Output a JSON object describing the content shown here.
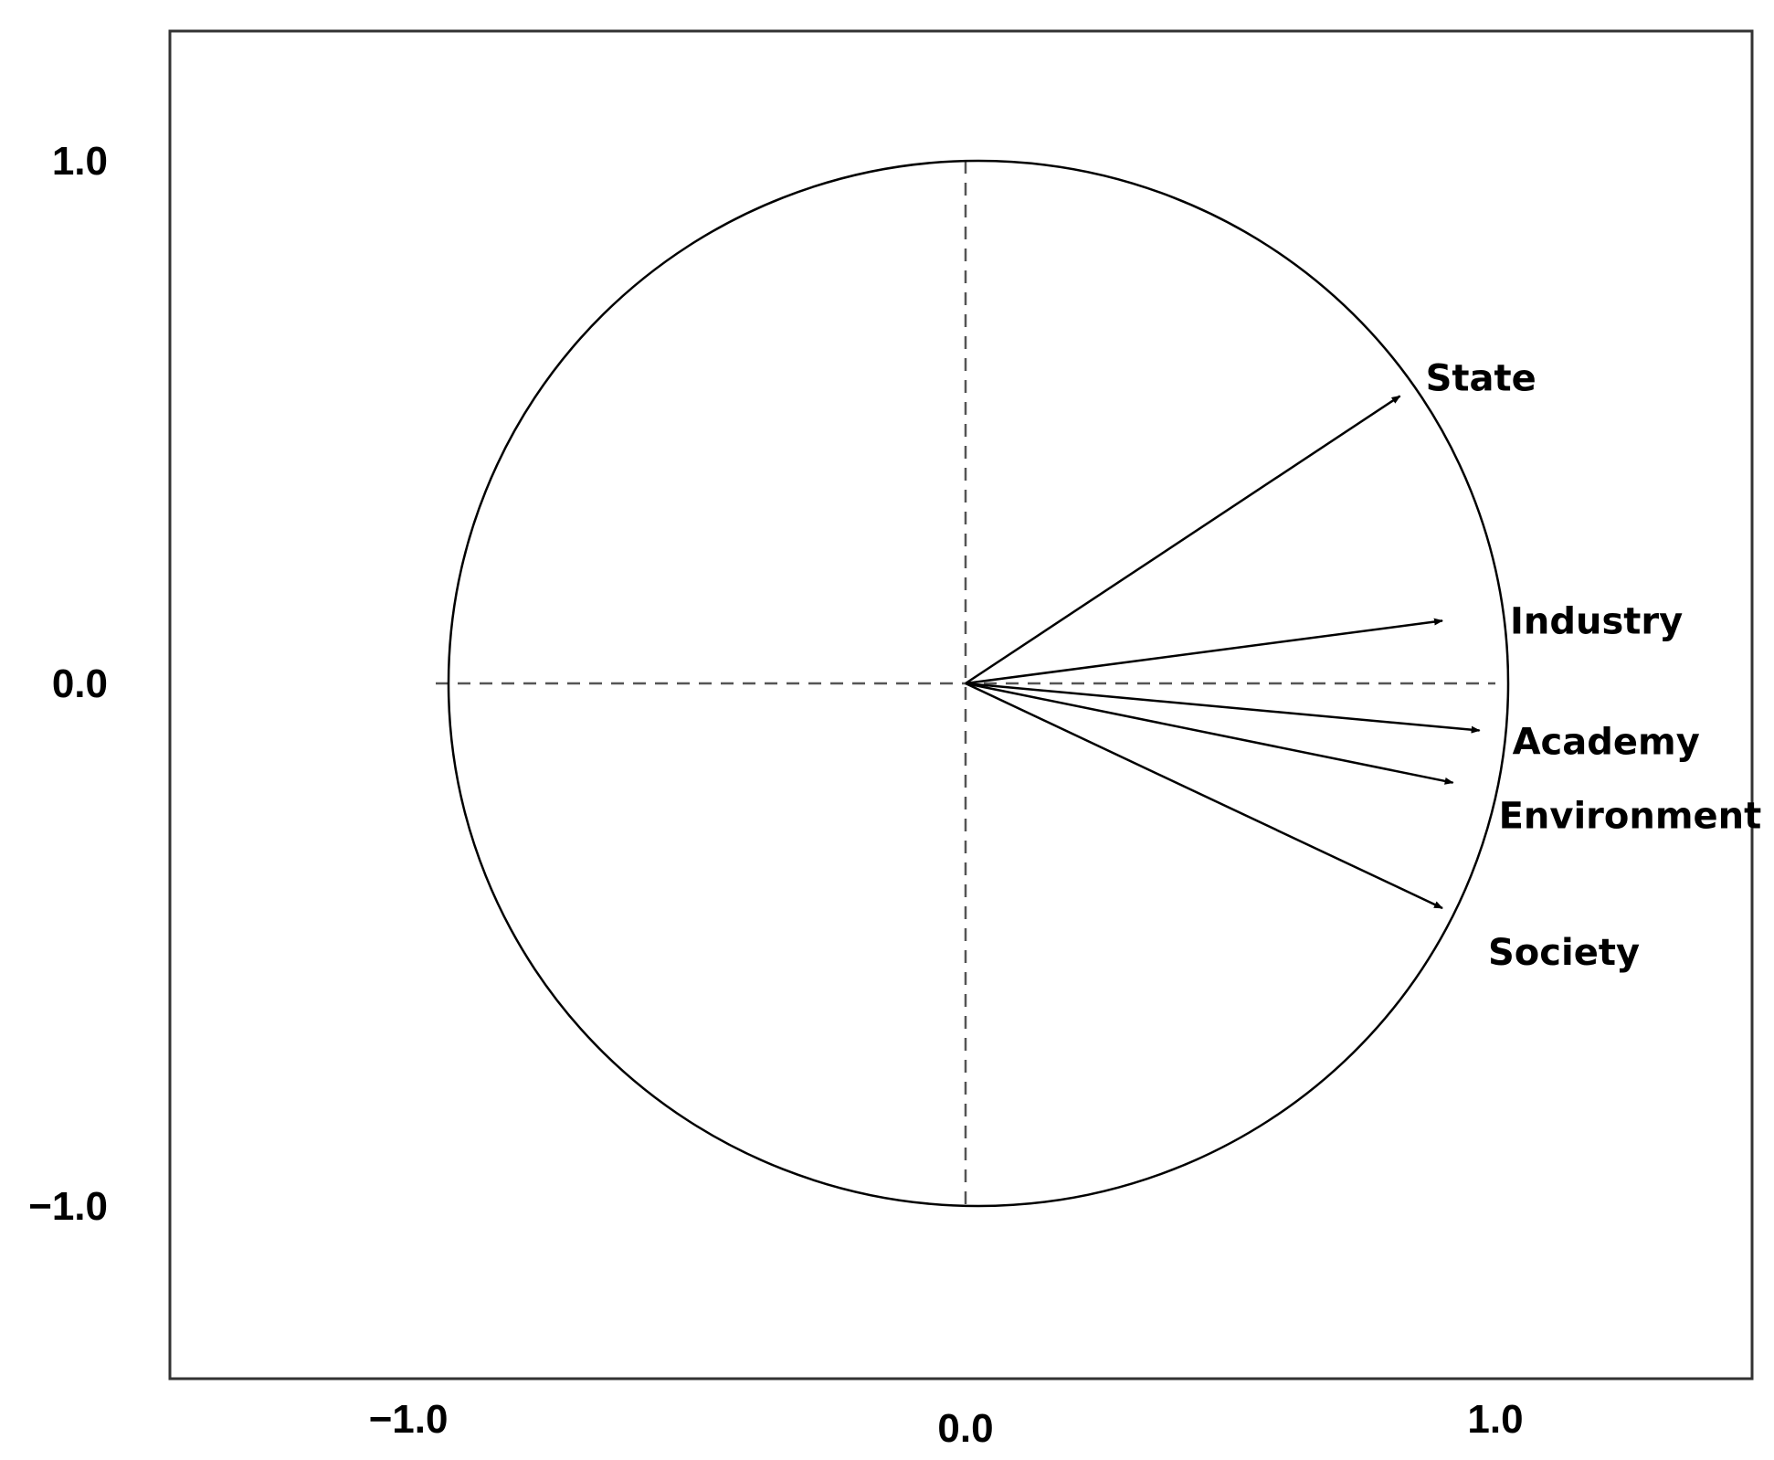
{
  "chart_data": {
    "type": "biplot-correlation-circle",
    "title": "",
    "xlabel": "",
    "ylabel": "",
    "xlim": [
      -1.5,
      1.5
    ],
    "ylim": [
      -1.3,
      1.3
    ],
    "x_ticks": [
      {
        "value": -1.0,
        "label": "−1.0"
      },
      {
        "value": 0.0,
        "label": "0.0"
      },
      {
        "value": 1.0,
        "label": "1.0"
      }
    ],
    "y_ticks": [
      {
        "value": 1.0,
        "label": "1.0"
      },
      {
        "value": 0.0,
        "label": "0.0"
      },
      {
        "value": -1.0,
        "label": "−1.0"
      }
    ],
    "unit_circle": true,
    "reference_lines": "dashed axes through origin",
    "vectors": [
      {
        "name": "State",
        "x": 0.82,
        "y": 0.55
      },
      {
        "name": "Industry",
        "x": 0.9,
        "y": 0.12
      },
      {
        "name": "Academy",
        "x": 0.97,
        "y": -0.09
      },
      {
        "name": "Environment",
        "x": 0.92,
        "y": -0.19
      },
      {
        "name": "Society",
        "x": 0.9,
        "y": -0.43
      }
    ],
    "colors": {
      "line": "#000000",
      "background": "#ffffff"
    }
  }
}
